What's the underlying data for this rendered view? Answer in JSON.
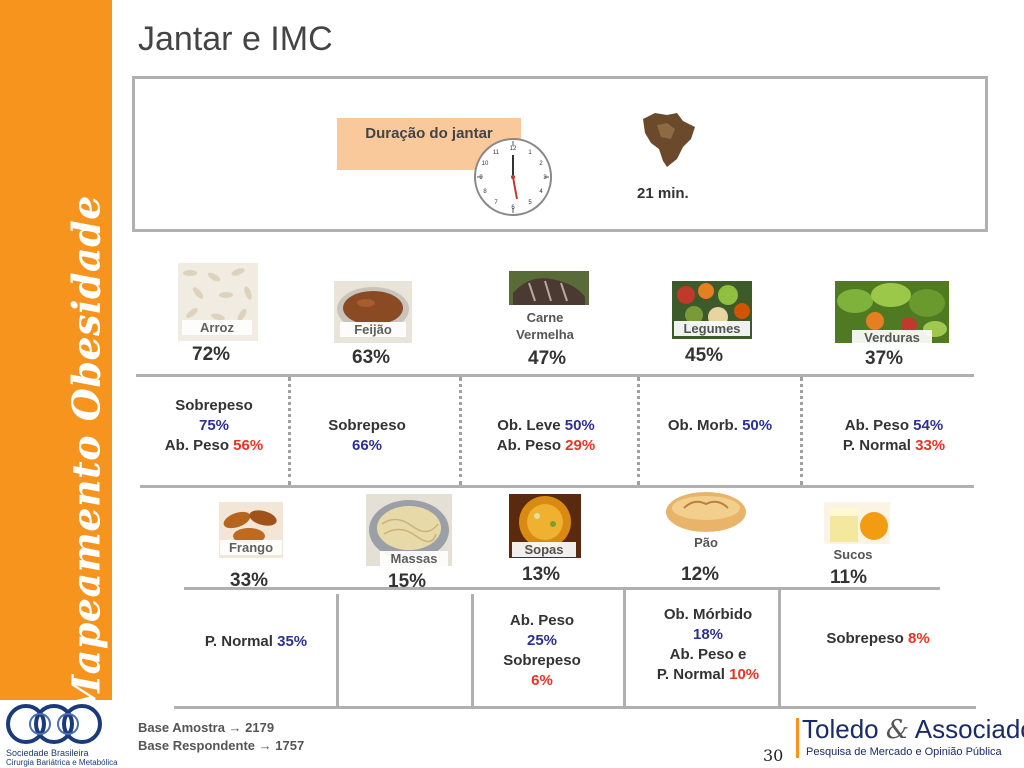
{
  "sidebar": {
    "title": "Mapeamento Obesidade"
  },
  "logo": {
    "line1": "Sociedade Brasileira",
    "line2": "Cirurgia Bariátrica e Metabólica",
    "colors": {
      "ring": "#1b3a7a"
    }
  },
  "slide": {
    "title": "Jantar e IMC"
  },
  "duration": {
    "label": "Duração do jantar",
    "value": "21 min.",
    "clock_numbers": [
      "12",
      "1",
      "2",
      "3",
      "4",
      "5",
      "6",
      "7",
      "8",
      "9",
      "10",
      "11"
    ]
  },
  "foods_row1": [
    {
      "name": "Arroz",
      "pct": "72%"
    },
    {
      "name": "Feijão",
      "pct": "63%"
    },
    {
      "name": "Carne Vermelha",
      "name_line1": "Carne",
      "name_line2": "Vermelha",
      "pct": "47%"
    },
    {
      "name": "Legumes",
      "pct": "45%"
    },
    {
      "name": "Verduras",
      "pct": "37%"
    }
  ],
  "row1_cells": [
    {
      "l1": "Sobrepeso",
      "v1": "75%",
      "l2": "Ab. Peso ",
      "v2": "56%"
    },
    {
      "l1": "Sobrepeso",
      "v1": "66%"
    },
    {
      "l1": "Ob. Leve ",
      "v1": "50%",
      "l2": "Ab. Peso ",
      "v2": "29%"
    },
    {
      "l1": "Ob. Morb. ",
      "v1": "50%"
    },
    {
      "l1": "Ab. Peso ",
      "v1": "54%",
      "l2": "P. Normal ",
      "v2": "33%"
    }
  ],
  "foods_row2": [
    {
      "name": "Frango",
      "pct": "33%"
    },
    {
      "name": "Massas",
      "pct": "15%"
    },
    {
      "name": "Sopas",
      "pct": "13%"
    },
    {
      "name": "Pão",
      "pct": "12%"
    },
    {
      "name": "Sucos",
      "pct": "11%"
    }
  ],
  "row2_cells": [
    {
      "l1": "P. Normal ",
      "v1": "35%"
    },
    {
      "l1": "Ab. Peso",
      "v1": "25%",
      "l2": "Sobrepeso",
      "v2": "6%"
    },
    {
      "l1": "Ob. Mórbido",
      "v1": "18%",
      "l2": "Ab. Peso e",
      "l3": "P. Normal ",
      "v3": "10%"
    },
    {
      "l1": "Sobrepeso ",
      "v1": "8%"
    }
  ],
  "footer": {
    "base_amostra": "Base Amostra → 2179",
    "base_respondente": "Base Respondente → 1757",
    "page_number": "30",
    "brand_left": "Toledo ",
    "brand_amp": "&",
    "brand_right": " Associados",
    "brand_sub": "Pesquisa de Mercado e Opinião Pública"
  },
  "colors": {
    "orange": "#f7941e",
    "duration_box": "#f9c89b",
    "blue_value": "#2e3192",
    "red_value": "#ee3124",
    "divider": "#b0b0b0"
  }
}
